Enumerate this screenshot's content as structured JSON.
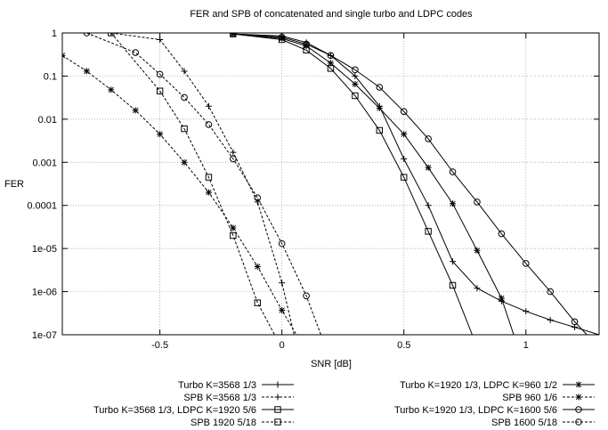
{
  "chart_data": {
    "type": "line",
    "title": "FER and SPB of concatenated and single turbo and LDPC codes",
    "xlabel": "SNR [dB]",
    "ylabel": "FER",
    "xlim": [
      -0.9,
      1.3
    ],
    "ylim": [
      1e-07,
      1
    ],
    "yscale": "log",
    "grid": true,
    "legend_position": "bottom",
    "x_ticks": [
      {
        "value": -0.5,
        "label": "-0.5"
      },
      {
        "value": 0,
        "label": "0"
      },
      {
        "value": 0.5,
        "label": "0.5"
      },
      {
        "value": 1,
        "label": "1"
      }
    ],
    "y_ticks": [
      {
        "value": 1,
        "label": "1"
      },
      {
        "value": 0.1,
        "label": "0.1"
      },
      {
        "value": 0.01,
        "label": "0.01"
      },
      {
        "value": 0.001,
        "label": "0.001"
      },
      {
        "value": 0.0001,
        "label": "0.0001"
      },
      {
        "value": 1e-05,
        "label": "1e-05"
      },
      {
        "value": 1e-06,
        "label": "1e-06"
      },
      {
        "value": 1e-07,
        "label": "1e-07"
      }
    ],
    "series": [
      {
        "name": "Turbo K=3568 1/3",
        "marker": "plus",
        "dash": false,
        "x": [
          -0.2,
          0.0,
          0.1,
          0.2,
          0.3,
          0.4,
          0.5,
          0.6,
          0.7,
          0.8,
          0.9,
          1.0,
          1.1,
          1.2,
          1.3
        ],
        "y": [
          0.95,
          0.85,
          0.6,
          0.3,
          0.1,
          0.02,
          0.0012,
          0.0001,
          5e-06,
          1.2e-06,
          6e-07,
          3.5e-07,
          2.2e-07,
          1.5e-07,
          1e-07
        ]
      },
      {
        "name": "SPB K=3568 1/3",
        "marker": "plus",
        "dash": true,
        "x": [
          -0.7,
          -0.5,
          -0.4,
          -0.3,
          -0.2,
          -0.1,
          0.0,
          0.05
        ],
        "y": [
          1,
          0.7,
          0.13,
          0.02,
          0.0017,
          0.00012,
          1.6e-06,
          1e-07
        ]
      },
      {
        "name": "Turbo K=3568 1/3, LDPC K=1920 5/6",
        "marker": "square",
        "dash": false,
        "x": [
          -0.2,
          0.0,
          0.1,
          0.2,
          0.3,
          0.4,
          0.5,
          0.6,
          0.7,
          0.78
        ],
        "y": [
          0.95,
          0.7,
          0.4,
          0.15,
          0.035,
          0.0055,
          0.00045,
          2.5e-05,
          1.4e-06,
          1e-07
        ]
      },
      {
        "name": "SPB 1920 5/18",
        "marker": "square",
        "dash": true,
        "x": [
          -0.7,
          -0.5,
          -0.4,
          -0.3,
          -0.2,
          -0.1,
          -0.03
        ],
        "y": [
          1,
          0.045,
          0.006,
          0.00045,
          2e-05,
          5.5e-07,
          1e-07
        ]
      },
      {
        "name": "Turbo K=1920 1/3, LDPC K=960 1/2",
        "marker": "star",
        "dash": false,
        "x": [
          -0.2,
          0.0,
          0.1,
          0.2,
          0.3,
          0.4,
          0.5,
          0.6,
          0.7,
          0.8,
          0.9,
          0.95
        ],
        "y": [
          0.95,
          0.75,
          0.5,
          0.2,
          0.065,
          0.018,
          0.0045,
          0.00075,
          0.00011,
          9e-06,
          7e-07,
          1e-07
        ]
      },
      {
        "name": "SPB 960 1/6",
        "marker": "star",
        "dash": true,
        "x": [
          -0.9,
          -0.8,
          -0.7,
          -0.6,
          -0.5,
          -0.4,
          -0.3,
          -0.2,
          -0.1,
          0.0,
          0.06
        ],
        "y": [
          0.3,
          0.13,
          0.048,
          0.016,
          0.0045,
          0.001,
          0.0002,
          3e-05,
          3.8e-06,
          3.7e-07,
          1e-07
        ]
      },
      {
        "name": "Turbo K=1920 1/3, LDPC K=1600 5/6",
        "marker": "circle",
        "dash": false,
        "x": [
          -0.2,
          0.0,
          0.1,
          0.2,
          0.3,
          0.4,
          0.5,
          0.6,
          0.7,
          0.8,
          0.9,
          1.0,
          1.1,
          1.2,
          1.25
        ],
        "y": [
          0.95,
          0.8,
          0.55,
          0.3,
          0.14,
          0.055,
          0.015,
          0.0035,
          0.0006,
          0.00012,
          2.2e-05,
          4.5e-06,
          1e-06,
          2e-07,
          1e-07
        ]
      },
      {
        "name": "SPB 1600 5/18",
        "marker": "circle",
        "dash": true,
        "x": [
          -0.8,
          -0.6,
          -0.5,
          -0.4,
          -0.3,
          -0.2,
          -0.1,
          0.0,
          0.1,
          0.16
        ],
        "y": [
          1,
          0.35,
          0.11,
          0.032,
          0.0075,
          0.0012,
          0.00015,
          1.3e-05,
          8e-07,
          1e-07
        ]
      }
    ]
  }
}
